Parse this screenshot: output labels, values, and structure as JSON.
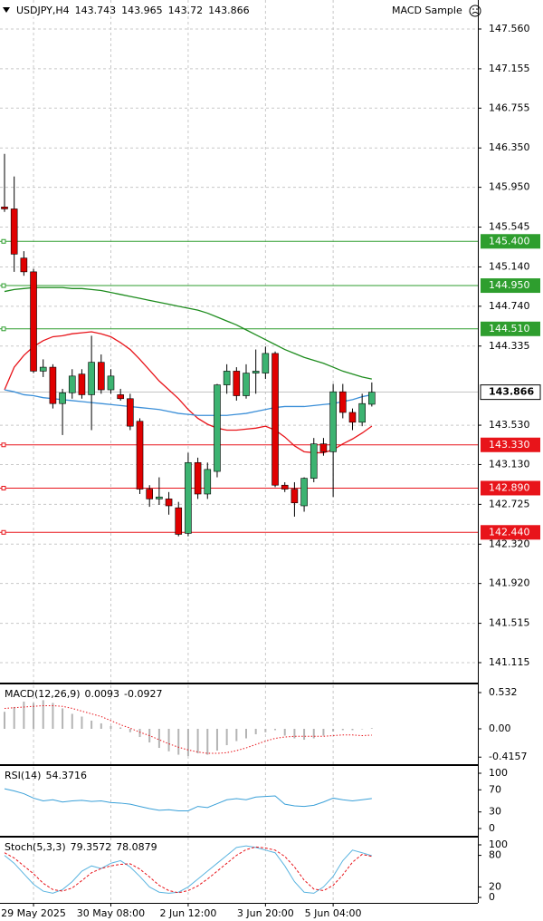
{
  "chart_data": [
    {
      "type": "candlestick",
      "title": "USDJPY,H4",
      "expert": "MACD Sample",
      "categories": [
        null,
        null,
        null,
        "29 May 2025",
        null,
        null,
        null,
        null,
        null,
        null,
        null,
        "30 May 08:00",
        null,
        null,
        null,
        null,
        null,
        null,
        null,
        "2 Jun 12:00",
        null,
        null,
        null,
        null,
        null,
        null,
        null,
        "3 Jun 20:00",
        null,
        null,
        null,
        null,
        null,
        null,
        "5 Jun 04:00",
        null,
        null,
        null,
        null
      ],
      "open": [
        145.75,
        145.73,
        145.23,
        145.09,
        144.08,
        144.12,
        143.75,
        143.86,
        144.05,
        143.84,
        144.17,
        143.89,
        143.84,
        143.8,
        143.57,
        142.88,
        142.78,
        142.78,
        142.69,
        142.43,
        143.15,
        142.83,
        143.06,
        143.94,
        144.08,
        143.83,
        144.06,
        144.06,
        144.26,
        142.92,
        142.88,
        142.71,
        142.99,
        143.34,
        143.26,
        143.87,
        143.66,
        143.56,
        143.743
      ],
      "high": [
        146.29,
        146.06,
        145.3,
        145.12,
        144.2,
        144.15,
        143.9,
        144.1,
        144.1,
        144.44,
        144.25,
        144.1,
        143.9,
        143.85,
        143.6,
        142.92,
        143.0,
        142.85,
        142.75,
        143.25,
        143.2,
        143.15,
        143.95,
        144.15,
        144.12,
        144.15,
        144.3,
        144.33,
        144.28,
        142.95,
        142.95,
        143.0,
        143.4,
        143.4,
        143.95,
        143.95,
        143.7,
        143.85,
        143.965
      ],
      "low": [
        145.7,
        145.09,
        145.05,
        144.06,
        144.02,
        143.7,
        143.43,
        143.8,
        143.8,
        143.48,
        143.85,
        143.85,
        143.78,
        143.48,
        142.83,
        142.7,
        142.72,
        142.62,
        142.4,
        142.4,
        142.78,
        142.78,
        143.0,
        143.85,
        143.78,
        143.8,
        143.85,
        144.0,
        142.9,
        142.85,
        142.6,
        142.65,
        142.95,
        143.22,
        142.8,
        143.6,
        143.48,
        143.52,
        143.72
      ],
      "close": [
        145.73,
        145.27,
        145.09,
        144.08,
        144.12,
        143.75,
        143.86,
        144.03,
        143.84,
        144.17,
        143.89,
        144.03,
        143.8,
        143.52,
        142.88,
        142.78,
        142.8,
        142.71,
        142.42,
        143.15,
        142.83,
        143.08,
        143.94,
        144.08,
        143.83,
        144.06,
        144.08,
        144.26,
        142.92,
        142.88,
        142.74,
        142.99,
        143.34,
        143.26,
        143.87,
        143.66,
        143.56,
        143.75,
        143.866
      ],
      "up_color": "#3cb371",
      "down_color": "#e00000",
      "series": [
        {
          "color": "#e8141a",
          "style": "solid",
          "values": [
            143.89,
            144.12,
            144.24,
            144.33,
            144.39,
            144.43,
            144.44,
            144.46,
            144.47,
            144.48,
            144.46,
            144.43,
            144.37,
            144.3,
            144.2,
            144.09,
            143.98,
            143.89,
            143.8,
            143.69,
            143.6,
            143.54,
            143.5,
            143.48,
            143.48,
            143.49,
            143.5,
            143.52,
            143.48,
            143.41,
            143.32,
            143.26,
            143.25,
            143.25,
            143.28,
            143.34,
            143.39,
            143.45,
            143.52
          ]
        },
        {
          "color": "#3b8fd8",
          "style": "solid",
          "values": [
            143.89,
            143.87,
            143.84,
            143.83,
            143.81,
            143.8,
            143.79,
            143.78,
            143.77,
            143.76,
            143.75,
            143.74,
            143.73,
            143.72,
            143.71,
            143.7,
            143.69,
            143.67,
            143.65,
            143.64,
            143.63,
            143.63,
            143.63,
            143.63,
            143.64,
            143.65,
            143.67,
            143.69,
            143.71,
            143.72,
            143.72,
            143.72,
            143.73,
            143.74,
            143.75,
            143.77,
            143.79,
            143.82,
            143.84
          ]
        },
        {
          "color": "#1e8c1e",
          "style": "solid",
          "values": [
            144.89,
            144.91,
            144.92,
            144.93,
            144.93,
            144.93,
            144.93,
            144.92,
            144.92,
            144.91,
            144.9,
            144.88,
            144.86,
            144.84,
            144.82,
            144.8,
            144.78,
            144.76,
            144.74,
            144.72,
            144.7,
            144.67,
            144.63,
            144.59,
            144.55,
            144.5,
            144.45,
            144.4,
            144.35,
            144.3,
            144.26,
            144.22,
            144.19,
            144.16,
            144.12,
            144.08,
            144.05,
            144.02,
            144.0
          ]
        }
      ],
      "levels": [
        {
          "value": 145.4,
          "label": "145.400",
          "color": "#2e9e2e"
        },
        {
          "value": 144.95,
          "label": "144.950",
          "color": "#2e9e2e"
        },
        {
          "value": 144.51,
          "label": "144.510",
          "color": "#2e9e2e"
        },
        {
          "value": 143.33,
          "label": "143.330",
          "color": "#e8141a"
        },
        {
          "value": 142.89,
          "label": "142.890",
          "color": "#e8141a"
        },
        {
          "value": 142.44,
          "label": "142.440",
          "color": "#e8141a"
        }
      ],
      "ylim": [
        140.912,
        147.855
      ],
      "yticks": [
        {
          "value": 147.56,
          "label": "147.560"
        },
        147.155,
        {
          "value": 146.755,
          "label": "146.755"
        },
        {
          "value": 146.35,
          "label": "146.350"
        },
        {
          "value": 145.95,
          "label": "145.950"
        },
        145.545,
        {
          "value": 145.14,
          "label": "145.140"
        },
        {
          "value": 144.74,
          "label": "144.740"
        },
        144.335,
        {
          "value": 143.53,
          "label": "143.530"
        },
        {
          "value": 143.13,
          "label": "143.130"
        },
        142.725,
        {
          "value": 142.32,
          "label": "142.320"
        },
        {
          "value": 141.92,
          "label": "141.920"
        },
        141.515,
        141.115
      ],
      "grid": true
    },
    {
      "type": "macd",
      "title": "MACD(12,26,9)",
      "series": [
        {
          "color": "#b4b4b4",
          "style": "histogram",
          "values": [
            0.25,
            0.32,
            0.4,
            0.38,
            0.42,
            0.38,
            0.3,
            0.22,
            0.18,
            0.12,
            0.08,
            0.04,
            0.02,
            -0.05,
            -0.12,
            -0.2,
            -0.28,
            -0.33,
            -0.38,
            -0.4,
            -0.36,
            -0.38,
            -0.32,
            -0.24,
            -0.18,
            -0.14,
            -0.08,
            -0.05,
            -0.02,
            -0.1,
            -0.14,
            -0.16,
            -0.14,
            -0.1,
            -0.04,
            -0.02,
            -0.02,
            0.0,
            0.0093
          ]
        },
        {
          "color": "#e8141a",
          "style": "dotted",
          "values": [
            0.3,
            0.31,
            0.32,
            0.33,
            0.34,
            0.34,
            0.33,
            0.3,
            0.26,
            0.22,
            0.18,
            0.12,
            0.06,
            0.01,
            -0.05,
            -0.1,
            -0.16,
            -0.22,
            -0.27,
            -0.31,
            -0.34,
            -0.36,
            -0.36,
            -0.35,
            -0.32,
            -0.28,
            -0.23,
            -0.18,
            -0.14,
            -0.12,
            -0.11,
            -0.11,
            -0.11,
            -0.11,
            -0.1,
            -0.09,
            -0.09,
            -0.1,
            -0.0927
          ]
        }
      ],
      "ylim": [
        -0.519,
        0.652
      ],
      "yticks": [
        0.532,
        {
          "value": 0,
          "label": "0.00"
        },
        -0.4157
      ],
      "grid": false
    },
    {
      "type": "line",
      "title": "RSI(14)",
      "series": [
        {
          "color": "#3aa0d8",
          "style": "solid",
          "values": [
            72,
            68,
            63,
            55,
            50,
            52,
            48,
            50,
            51,
            49,
            50,
            47,
            46,
            44,
            40,
            36,
            33,
            34,
            32,
            32,
            40,
            38,
            45,
            52,
            54,
            52,
            57,
            58,
            59,
            44,
            41,
            40,
            42,
            48,
            55,
            52,
            50,
            52,
            54.3716
          ]
        }
      ],
      "ylim": [
        -13.1,
        113.1
      ],
      "yticks": [
        100,
        70,
        30,
        0
      ],
      "grid": false
    },
    {
      "type": "line",
      "title": "Stoch(5,3,3)",
      "series": [
        {
          "color": "#5ab4e0",
          "style": "solid",
          "values": [
            80,
            65,
            45,
            25,
            12,
            8,
            15,
            30,
            50,
            60,
            55,
            65,
            70,
            58,
            40,
            20,
            10,
            8,
            10,
            20,
            35,
            50,
            65,
            80,
            95,
            98,
            95,
            90,
            85,
            60,
            30,
            10,
            8,
            20,
            40,
            70,
            90,
            85,
            79.3572
          ]
        },
        {
          "color": "#e8141a",
          "style": "dashed",
          "values": [
            85,
            75,
            60,
            45,
            27,
            15,
            12,
            18,
            32,
            47,
            55,
            60,
            63,
            64,
            54,
            39,
            23,
            13,
            9,
            13,
            22,
            35,
            50,
            65,
            80,
            91,
            96,
            94,
            90,
            78,
            58,
            33,
            16,
            13,
            23,
            43,
            67,
            82,
            78.0879
          ]
        }
      ],
      "ylim": [
        -10.3,
        113.8
      ],
      "yticks": [
        100,
        80,
        20,
        0
      ],
      "grid": false
    }
  ]
}
